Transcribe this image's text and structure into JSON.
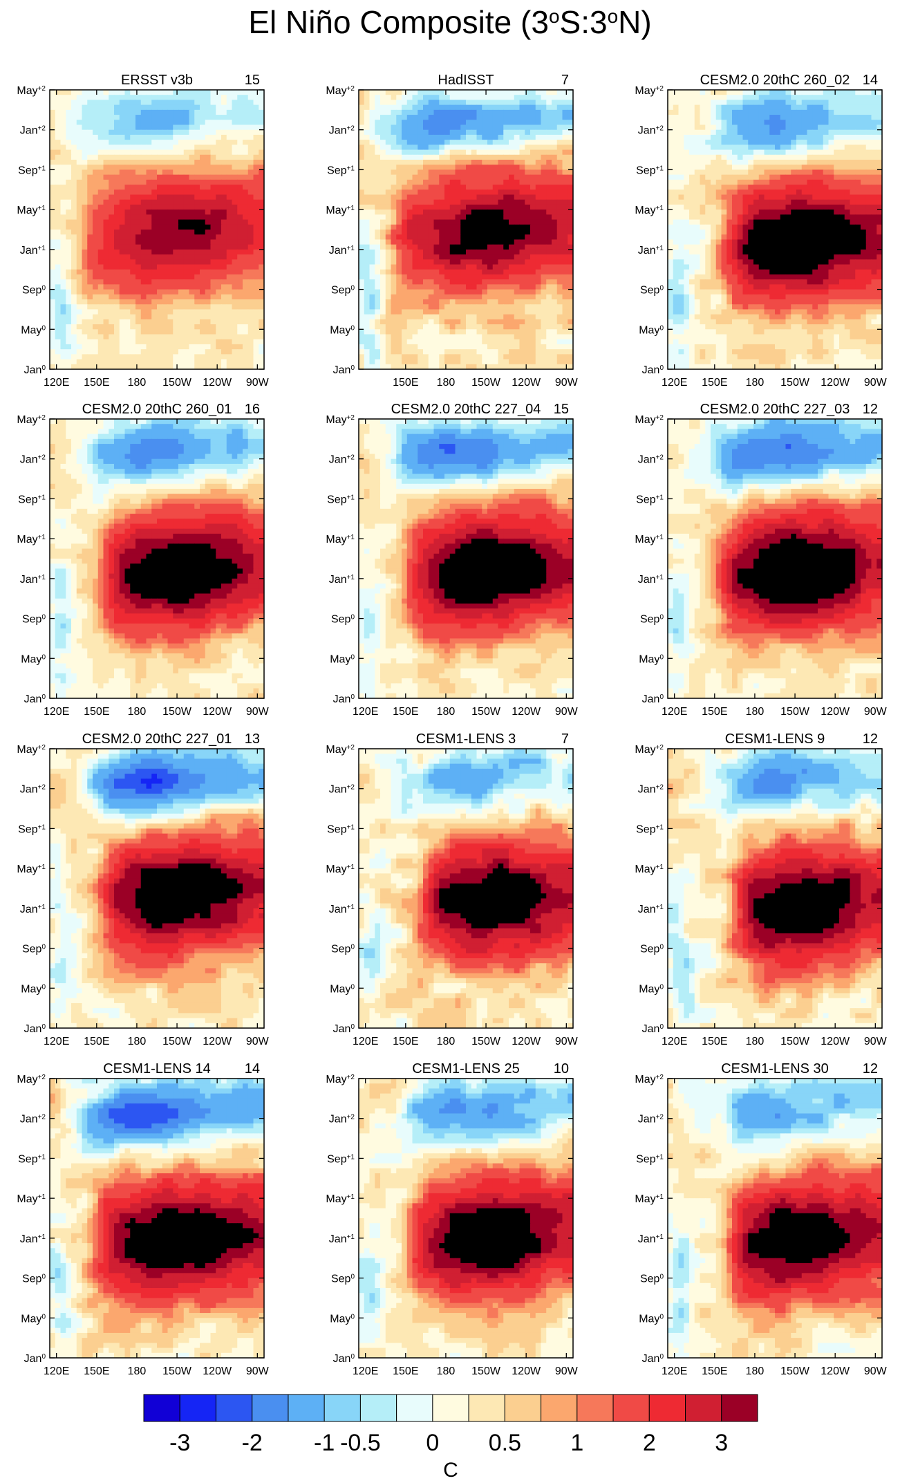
{
  "title": "El Niño Composite (3°S:3°N)",
  "title_parts": {
    "lead": "El Niño Composite (3",
    "deg1": "o",
    "mid": "S:3",
    "deg2": "o",
    "tail": "N)"
  },
  "chart_data": {
    "type": "heatmap",
    "variable": "SST anomaly composite (Hovmöller, longitude vs. time)",
    "x_ticks": [
      "120E",
      "150E",
      "180",
      "150W",
      "120W",
      "90W"
    ],
    "x_range": [
      115,
      275
    ],
    "x_tick_values": [
      120,
      150,
      180,
      210,
      240,
      270
    ],
    "y_ticks": [
      {
        "base": "Jan",
        "sup": "0"
      },
      {
        "base": "May",
        "sup": "0"
      },
      {
        "base": "Sep",
        "sup": "0"
      },
      {
        "base": "Jan",
        "sup": "+1"
      },
      {
        "base": "May",
        "sup": "+1"
      },
      {
        "base": "Sep",
        "sup": "+1"
      },
      {
        "base": "Jan",
        "sup": "+2"
      },
      {
        "base": "May",
        "sup": "+2"
      }
    ],
    "y_range": [
      0,
      28
    ],
    "panels": [
      {
        "title": "ERSST v3b",
        "count": "15",
        "amp": 0.78,
        "cold": 0.45,
        "x0": 0.18,
        "shift": 0.04,
        "noise": 0.05,
        "warmWest": 0.3,
        "xAxis": "full"
      },
      {
        "title": "HadISST",
        "count": "7",
        "amp": 0.88,
        "cold": 0.62,
        "x0": 0.17,
        "shift": 0.04,
        "noise": 0.12,
        "warmWest": 0.3,
        "xAxis": "partial"
      },
      {
        "title": "CESM2.0 20thC 260_02",
        "count": "14",
        "amp": 1.05,
        "cold": 0.65,
        "x0": 0.28,
        "shift": 0.0,
        "noise": 0.08,
        "warmWest": 0.2,
        "xAxis": "full"
      },
      {
        "title": "CESM2.0 20thC 260_01",
        "count": "16",
        "amp": 1.0,
        "cold": 0.72,
        "x0": 0.25,
        "shift": 0.0,
        "noise": 0.06,
        "warmWest": 0.2,
        "xAxis": "full"
      },
      {
        "title": "CESM2.0 20thC 227_04",
        "count": "15",
        "amp": 1.0,
        "cold": 0.78,
        "x0": 0.24,
        "shift": 0.0,
        "noise": 0.06,
        "warmWest": 0.3,
        "xAxis": "full"
      },
      {
        "title": "CESM2.0 20thC 227_03",
        "count": "12",
        "amp": 1.05,
        "cold": 0.88,
        "x0": 0.26,
        "shift": 0.0,
        "noise": 0.07,
        "warmWest": 0.25,
        "xAxis": "full"
      },
      {
        "title": "CESM2.0 20thC 227_01",
        "count": "13",
        "amp": 1.0,
        "cold": 0.95,
        "x0": 0.26,
        "shift": 0.02,
        "noise": 0.08,
        "warmWest": 0.3,
        "xAxis": "full"
      },
      {
        "title": "CESM1-LENS 3",
        "count": "7",
        "amp": 1.0,
        "cold": 0.55,
        "x0": 0.3,
        "shift": 0.0,
        "noise": 0.12,
        "warmWest": 0.2,
        "xAxis": "full"
      },
      {
        "title": "CESM1-LENS 9",
        "count": "12",
        "amp": 1.0,
        "cold": 0.62,
        "x0": 0.33,
        "shift": -0.02,
        "noise": 0.1,
        "warmWest": 0.2,
        "xAxis": "full"
      },
      {
        "title": "CESM1-LENS 14",
        "count": "14",
        "amp": 1.05,
        "cold": 0.9,
        "x0": 0.22,
        "shift": -0.03,
        "noise": 0.09,
        "warmWest": 0.35,
        "xAxis": "full"
      },
      {
        "title": "CESM1-LENS 25",
        "count": "10",
        "amp": 1.0,
        "cold": 0.65,
        "x0": 0.26,
        "shift": -0.02,
        "noise": 0.08,
        "warmWest": 0.2,
        "xAxis": "full"
      },
      {
        "title": "CESM1-LENS 30",
        "count": "12",
        "amp": 1.0,
        "cold": 0.55,
        "x0": 0.3,
        "shift": -0.03,
        "noise": 0.09,
        "warmWest": 0.2,
        "xAxis": "full"
      }
    ],
    "colorbar": {
      "levels": [
        "-3",
        "-2",
        "-1",
        "-0.5",
        "0",
        "0.5",
        "1",
        "2",
        "3"
      ],
      "level_values": [
        -3,
        -2.5,
        -2,
        -1.5,
        -1,
        -0.75,
        -0.5,
        -0.25,
        0,
        0.25,
        0.5,
        0.75,
        1,
        1.5,
        2,
        2.5,
        3
      ],
      "colors": [
        "#1100d6",
        "#1525f5",
        "#2c56f2",
        "#4a8ff0",
        "#5db0f5",
        "#88d5f8",
        "#b5eef8",
        "#e8fcfc",
        "#fffbe0",
        "#fde8b4",
        "#fbcf90",
        "#fba76e",
        "#f6785a",
        "#f04a46",
        "#ee2a33",
        "#d01f32",
        "#9b0026"
      ],
      "unit": "C"
    }
  }
}
